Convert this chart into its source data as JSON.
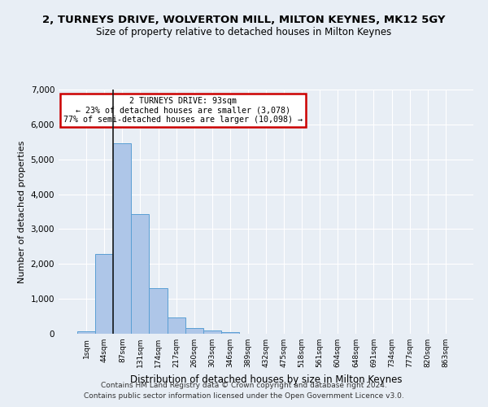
{
  "title": "2, TURNEYS DRIVE, WOLVERTON MILL, MILTON KEYNES, MK12 5GY",
  "subtitle": "Size of property relative to detached houses in Milton Keynes",
  "xlabel": "Distribution of detached houses by size in Milton Keynes",
  "ylabel": "Number of detached properties",
  "footer_line1": "Contains HM Land Registry data © Crown copyright and database right 2024.",
  "footer_line2": "Contains public sector information licensed under the Open Government Licence v3.0.",
  "annotation_title": "2 TURNEYS DRIVE: 93sqm",
  "annotation_line1": "← 23% of detached houses are smaller (3,078)",
  "annotation_line2": "77% of semi-detached houses are larger (10,098) →",
  "bar_color": "#aec6e8",
  "bar_edge_color": "#5a9fd4",
  "property_line_color": "#1a1a1a",
  "annotation_box_color": "#cc0000",
  "background_color": "#e8eef5",
  "categories": [
    "1sqm",
    "44sqm",
    "87sqm",
    "131sqm",
    "174sqm",
    "217sqm",
    "260sqm",
    "303sqm",
    "346sqm",
    "389sqm",
    "432sqm",
    "475sqm",
    "518sqm",
    "561sqm",
    "604sqm",
    "648sqm",
    "691sqm",
    "734sqm",
    "777sqm",
    "820sqm",
    "863sqm"
  ],
  "values": [
    80,
    2280,
    5460,
    3440,
    1310,
    470,
    155,
    85,
    55,
    0,
    0,
    0,
    0,
    0,
    0,
    0,
    0,
    0,
    0,
    0,
    0
  ],
  "property_bin_index": 2,
  "ylim": [
    0,
    7000
  ],
  "yticks": [
    0,
    1000,
    2000,
    3000,
    4000,
    5000,
    6000,
    7000
  ]
}
